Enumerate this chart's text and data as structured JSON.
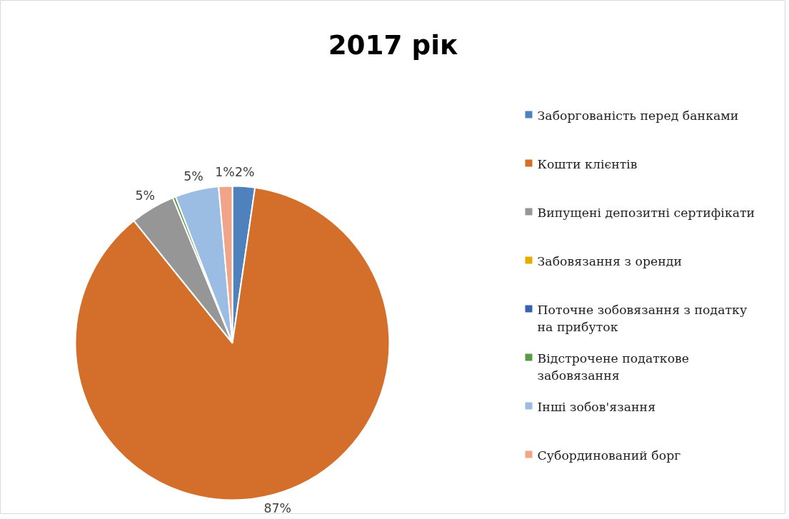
{
  "chart_data": {
    "type": "pie",
    "title": "2017 рік",
    "categories": [
      "Заборгованість перед банками",
      "Кошти клієнтів",
      "Випущені депозитні сертифікати",
      "Забовязання з оренди",
      "Поточне зобовязання з податку на прибуток",
      "Відстрочене податкове забовязання",
      "Інші зобов'язання",
      "Субординований борг"
    ],
    "values": [
      2.3,
      86.9,
      4.6,
      0,
      0,
      0.3,
      4.5,
      1.4
    ],
    "colors": [
      "#4f81bd",
      "#d36f2b",
      "#969696",
      "#e6ac00",
      "#3a60b0",
      "#5b9a45",
      "#9cbde3",
      "#f0a58a"
    ],
    "value_labels": [
      "2%",
      "87%",
      "5%",
      null,
      null,
      null,
      "5%",
      "1%"
    ],
    "legend": "right"
  }
}
